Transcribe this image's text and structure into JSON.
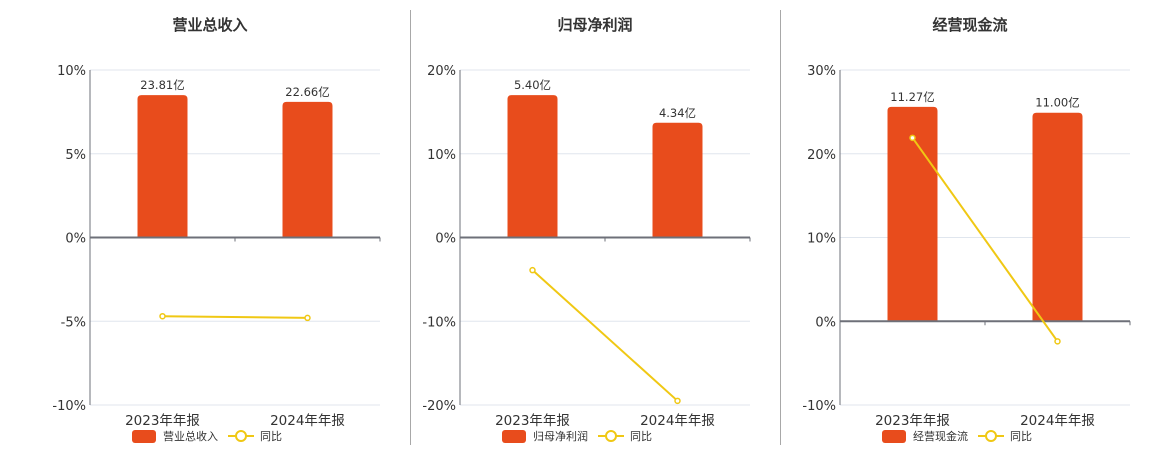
{
  "colors": {
    "bar": "#e84c1c",
    "line": "#f0c814",
    "grid": "#e0e6ee",
    "axis": "#6e7079"
  },
  "charts": [
    {
      "title": "营业总收入",
      "legend": {
        "bar_label": "营业总收入",
        "line_label": "同比"
      }
    },
    {
      "title": "归母净利润",
      "legend": {
        "bar_label": "归母净利润",
        "line_label": "同比"
      }
    },
    {
      "title": "经营现金流",
      "legend": {
        "bar_label": "经营现金流",
        "line_label": "同比"
      }
    }
  ],
  "chart_data": [
    {
      "type": "bar",
      "title": "营业总收入",
      "categories": [
        "2023年年报",
        "2024年年报"
      ],
      "series": [
        {
          "name": "营业总收入",
          "type": "bar",
          "values": [
            8.5,
            8.1
          ],
          "labels": [
            "23.81亿",
            "22.66亿"
          ]
        },
        {
          "name": "同比",
          "type": "line",
          "values": [
            -4.7,
            -4.8
          ]
        }
      ],
      "yticks": [
        "10%",
        "5%",
        "0%",
        "-5%",
        "-10%"
      ],
      "ylim": [
        -10,
        10
      ],
      "ystep": 5,
      "grid": true,
      "legend_position": "bottom"
    },
    {
      "type": "bar",
      "title": "归母净利润",
      "categories": [
        "2023年年报",
        "2024年年报"
      ],
      "series": [
        {
          "name": "归母净利润",
          "type": "bar",
          "values": [
            17.0,
            13.7
          ],
          "labels": [
            "5.40亿",
            "4.34亿"
          ]
        },
        {
          "name": "同比",
          "type": "line",
          "values": [
            -3.9,
            -19.5
          ]
        }
      ],
      "yticks": [
        "20%",
        "10%",
        "0%",
        "-10%",
        "-20%"
      ],
      "ylim": [
        -20,
        20
      ],
      "ystep": 10,
      "grid": true,
      "legend_position": "bottom"
    },
    {
      "type": "bar",
      "title": "经营现金流",
      "categories": [
        "2023年年报",
        "2024年年报"
      ],
      "series": [
        {
          "name": "经营现金流",
          "type": "bar",
          "values": [
            25.6,
            24.9
          ],
          "labels": [
            "11.27亿",
            "11.00亿"
          ]
        },
        {
          "name": "同比",
          "type": "line",
          "values": [
            21.9,
            -2.4
          ]
        }
      ],
      "yticks": [
        "30%",
        "20%",
        "10%",
        "0%",
        "-10%"
      ],
      "ylim": [
        -10,
        30
      ],
      "ystep": 10,
      "grid": true,
      "legend_position": "bottom"
    }
  ]
}
